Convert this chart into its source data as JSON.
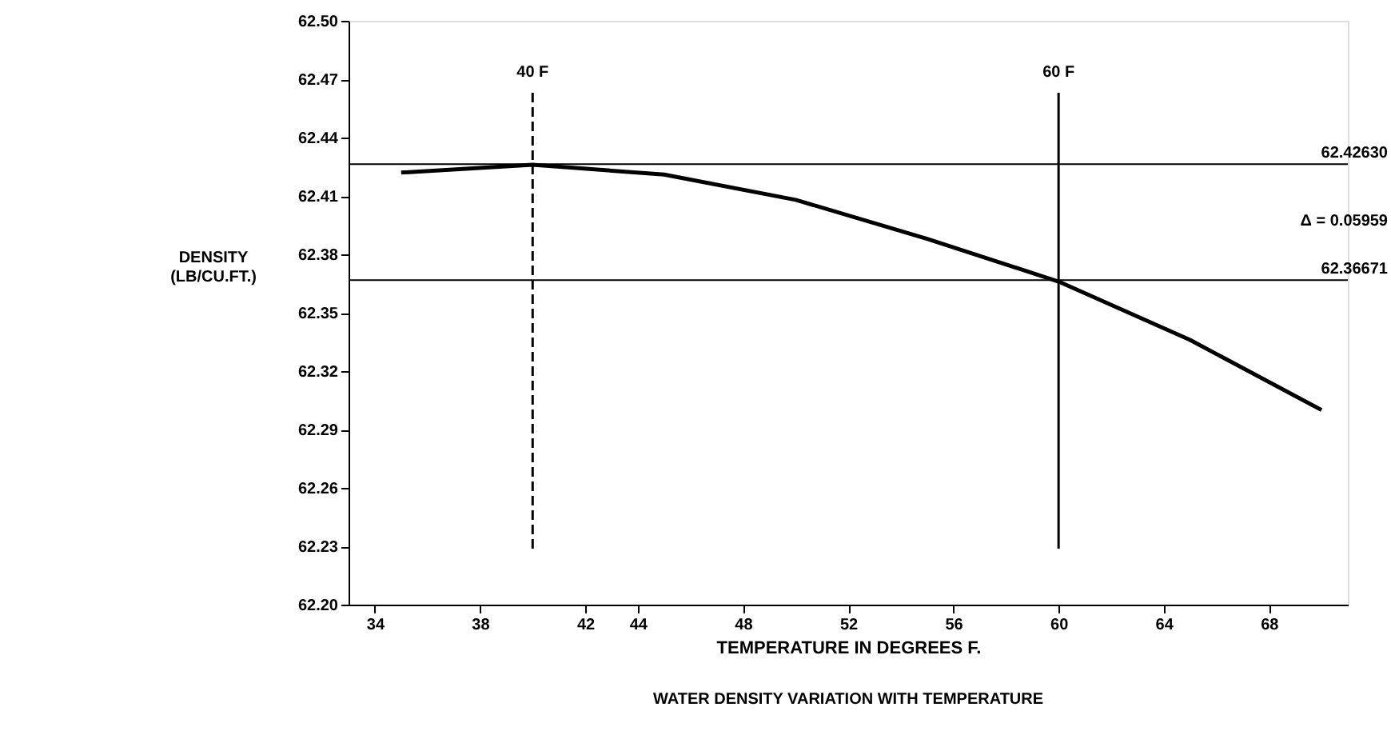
{
  "chart_data": {
    "type": "line",
    "title": "WATER DENSITY VARIATION WITH TEMPERATURE",
    "xlabel": "TEMPERATURE IN DEGREES F.",
    "ylabel": "DENSITY\n(LB/CU.FT.)",
    "x": [
      35,
      40,
      45,
      50,
      55,
      60,
      65,
      70
    ],
    "series": [
      {
        "color": "#000000",
        "values": [
          62.422,
          62.426,
          62.421,
          62.408,
          62.388,
          62.366,
          62.336,
          62.3
        ]
      }
    ],
    "xlim": [
      33,
      71
    ],
    "xticks": [
      34,
      38,
      42,
      44,
      48,
      52,
      56,
      60,
      64,
      68
    ],
    "ylim": [
      62.2,
      62.5
    ],
    "yticks": [
      {
        "value": 62.2,
        "label": "62.20"
      },
      62.23,
      62.26,
      62.29,
      62.32,
      62.35,
      62.38,
      62.41,
      62.44,
      62.47,
      {
        "value": 62.5,
        "label": "62.50"
      }
    ],
    "ref_lines": [
      {
        "axis": "x",
        "value": 40,
        "label": "40 F",
        "line_style": "dashed",
        "color": "#000000"
      },
      {
        "axis": "x",
        "value": 60,
        "label": "60 F",
        "line_style": "solid",
        "color": "#000000"
      },
      {
        "axis": "y",
        "value": 62.4263,
        "label": "62.42630",
        "line_style": "solid",
        "color": "#000000"
      },
      {
        "axis": "y",
        "value": 62.36671,
        "label": "62.36671",
        "line_style": "solid",
        "color": "#000000"
      }
    ],
    "annotations": [
      "Δ = 0.05959"
    ],
    "grid": false,
    "marker": "none",
    "line_style": "solid"
  }
}
